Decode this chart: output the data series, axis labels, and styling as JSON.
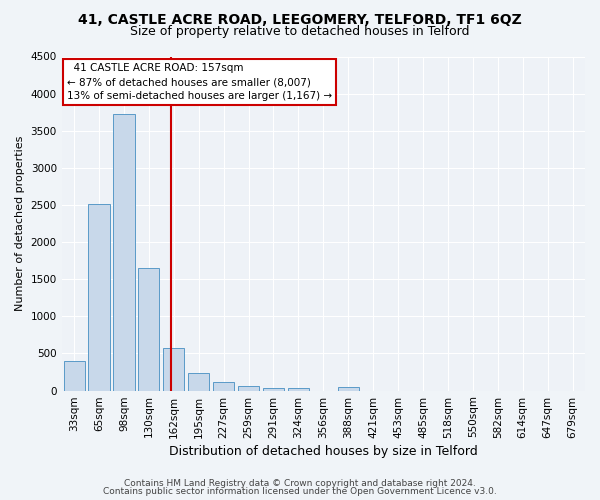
{
  "title1": "41, CASTLE ACRE ROAD, LEEGOMERY, TELFORD, TF1 6QZ",
  "title2": "Size of property relative to detached houses in Telford",
  "xlabel": "Distribution of detached houses by size in Telford",
  "ylabel": "Number of detached properties",
  "footnote1": "Contains HM Land Registry data © Crown copyright and database right 2024.",
  "footnote2": "Contains public sector information licensed under the Open Government Licence v3.0.",
  "bar_labels": [
    "33sqm",
    "65sqm",
    "98sqm",
    "130sqm",
    "162sqm",
    "195sqm",
    "227sqm",
    "259sqm",
    "291sqm",
    "324sqm",
    "356sqm",
    "388sqm",
    "421sqm",
    "453sqm",
    "485sqm",
    "518sqm",
    "550sqm",
    "582sqm",
    "614sqm",
    "647sqm",
    "679sqm"
  ],
  "bar_values": [
    400,
    2510,
    3720,
    1650,
    580,
    240,
    110,
    60,
    40,
    40,
    0,
    50,
    0,
    0,
    0,
    0,
    0,
    0,
    0,
    0,
    0
  ],
  "bar_color": "#c8d8ea",
  "bar_edge_color": "#5a9ac8",
  "red_line_x": 3.88,
  "red_line_color": "#cc0000",
  "annotation_text": "  41 CASTLE ACRE ROAD: 157sqm  \n← 87% of detached houses are smaller (8,007)\n13% of semi-detached houses are larger (1,167) →",
  "annotation_box_color": "#ffffff",
  "annotation_box_edge_color": "#cc0000",
  "ylim": [
    0,
    4500
  ],
  "yticks": [
    0,
    500,
    1000,
    1500,
    2000,
    2500,
    3000,
    3500,
    4000,
    4500
  ],
  "background_color": "#f0f4f8",
  "plot_bg_color": "#eef2f7",
  "grid_color": "#ffffff",
  "title1_fontsize": 10,
  "title2_fontsize": 9,
  "xlabel_fontsize": 9,
  "ylabel_fontsize": 8,
  "tick_fontsize": 7.5,
  "annotation_fontsize": 7.5,
  "footnote_fontsize": 6.5
}
